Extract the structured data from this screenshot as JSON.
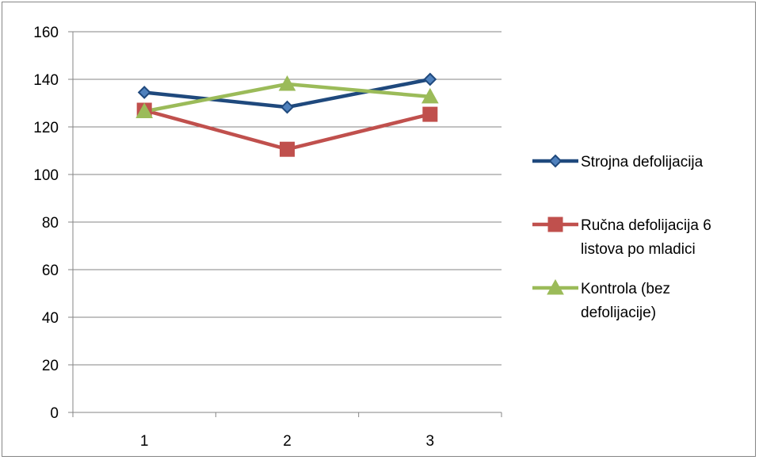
{
  "chart_data": {
    "type": "line",
    "title": "",
    "xlabel": "",
    "ylabel": "",
    "categories": [
      "1",
      "2",
      "3"
    ],
    "ylim": [
      0,
      160
    ],
    "yticks": [
      "0",
      "20",
      "40",
      "60",
      "80",
      "100",
      "120",
      "140",
      "160"
    ],
    "grid": true,
    "legend_position": "right",
    "series": [
      {
        "name": "Strojna defolijacija",
        "values": [
          134.5,
          128.3,
          140.0
        ],
        "color": "#1F497D",
        "marker": "diamond",
        "legend_lines": [
          "Strojna defolijacija"
        ]
      },
      {
        "name": "Ručna defolijacija 6 listova po mladici",
        "values": [
          127.0,
          110.6,
          125.3
        ],
        "color": "#C0504D",
        "marker": "square",
        "legend_lines": [
          "Ručna defolijacija 6",
          "listova po mladici"
        ]
      },
      {
        "name": "Kontrola (bez defolijacije)",
        "values": [
          126.5,
          138.0,
          132.7
        ],
        "color": "#9BBB59",
        "marker": "triangle",
        "legend_lines": [
          "Kontrola (bez",
          "defolijacije)"
        ]
      }
    ]
  }
}
